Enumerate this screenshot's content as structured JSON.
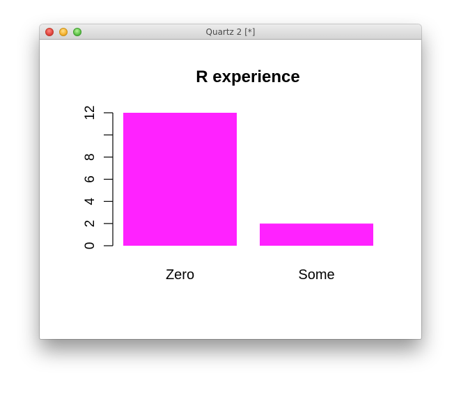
{
  "window": {
    "title": "Quartz 2 [*]"
  },
  "chart_data": {
    "type": "bar",
    "title": "R experience",
    "xlabel": "",
    "ylabel": "",
    "categories": [
      "Zero",
      "Some"
    ],
    "values": [
      12,
      2
    ],
    "ylim": [
      0,
      12
    ],
    "yticks": [
      0,
      2,
      4,
      6,
      8,
      10,
      12
    ],
    "ytick_labels": [
      "0",
      "2",
      "4",
      "6",
      "8",
      "",
      "12"
    ],
    "bar_color": "#ff22ff",
    "grid": false
  }
}
